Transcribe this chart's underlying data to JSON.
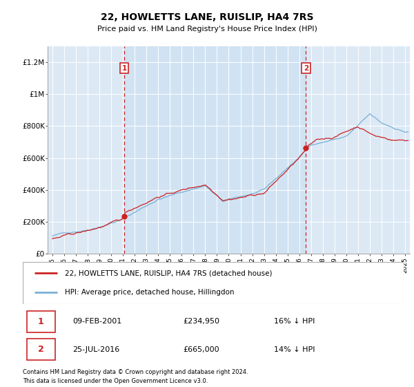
{
  "title": "22, HOWLETTS LANE, RUISLIP, HA4 7RS",
  "subtitle": "Price paid vs. HM Land Registry's House Price Index (HPI)",
  "legend_line1": "22, HOWLETTS LANE, RUISLIP, HA4 7RS (detached house)",
  "legend_line2": "HPI: Average price, detached house, Hillingdon",
  "footer_line1": "Contains HM Land Registry data © Crown copyright and database right 2024.",
  "footer_line2": "This data is licensed under the Open Government Licence v3.0.",
  "sale1_date": "09-FEB-2001",
  "sale1_price": "£234,950",
  "sale1_hpi": "16% ↓ HPI",
  "sale1_x": 2001.12,
  "sale1_y": 234950,
  "sale2_date": "25-JUL-2016",
  "sale2_price": "£665,000",
  "sale2_hpi": "14% ↓ HPI",
  "sale2_x": 2016.57,
  "sale2_y": 665000,
  "hpi_color": "#7aafd4",
  "sale_color": "#cc2222",
  "dashed_vline_color": "#cc2222",
  "shade_color": "#dce9f5",
  "plot_bg_color": "#dce9f5",
  "ylim": [
    0,
    1300000
  ],
  "xlim_start": 1994.6,
  "xlim_end": 2025.4,
  "ytick_labels": [
    "£0",
    "£200K",
    "£400K",
    "£600K",
    "£800K",
    "£1M",
    "£1.2M"
  ],
  "ytick_values": [
    0,
    200000,
    400000,
    600000,
    800000,
    1000000,
    1200000
  ],
  "xtick_years": [
    1995,
    1996,
    1997,
    1998,
    1999,
    2000,
    2001,
    2002,
    2003,
    2004,
    2005,
    2006,
    2007,
    2008,
    2009,
    2010,
    2011,
    2012,
    2013,
    2014,
    2015,
    2016,
    2017,
    2018,
    2019,
    2020,
    2021,
    2022,
    2023,
    2024,
    2025
  ]
}
